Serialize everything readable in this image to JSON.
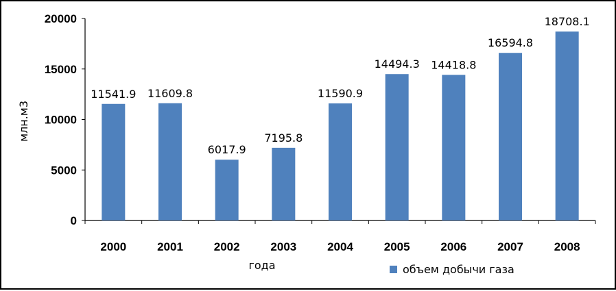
{
  "chart_data": {
    "type": "bar",
    "categories": [
      "2000",
      "2001",
      "2002",
      "2003",
      "2004",
      "2005",
      "2006",
      "2007",
      "2008"
    ],
    "series": [
      {
        "name": "объем добычи газа",
        "values": [
          11541.9,
          11609.8,
          6017.9,
          7195.8,
          11590.9,
          14494.3,
          14418.8,
          16594.8,
          18708.1
        ],
        "value_labels": [
          "11541.9",
          "11609.8",
          "6017.9",
          "7195.8",
          "11590.9",
          "14494.3",
          "14418.8",
          "16594.8",
          "18708.1"
        ],
        "color": "#4F81BD"
      }
    ],
    "title": "",
    "xlabel": "года",
    "ylabel": "млн.м3",
    "ylim": [
      0,
      20000
    ],
    "yticks": [
      "0",
      "5000",
      "10000",
      "15000",
      "20000"
    ],
    "grid": false,
    "legend": "bottom-right"
  }
}
